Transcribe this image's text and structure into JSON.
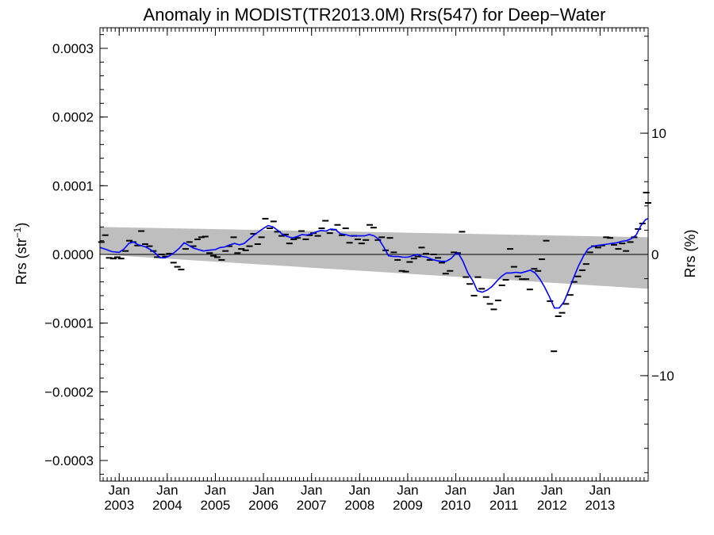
{
  "chart_data": {
    "type": "line",
    "title": "Anomaly in MODIST(TR2013.0M) Rrs(547) for Deep−Water",
    "ylabel_left_pre": "Rrs (str",
    "ylabel_left_sup": "−1",
    "ylabel_left_post": ")",
    "ylabel_right": "Rrs (%)",
    "xlim": [
      2002.6,
      2014.0
    ],
    "ylim": [
      -0.00033,
      0.00033
    ],
    "y2lim": [
      -18.7,
      18.7
    ],
    "grid": false,
    "x_ticks": [
      {
        "x": 2003.0,
        "top": "Jan",
        "bottom": "2003"
      },
      {
        "x": 2004.0,
        "top": "Jan",
        "bottom": "2004"
      },
      {
        "x": 2005.0,
        "top": "Jan",
        "bottom": "2005"
      },
      {
        "x": 2006.0,
        "top": "Jan",
        "bottom": "2006"
      },
      {
        "x": 2007.0,
        "top": "Jan",
        "bottom": "2007"
      },
      {
        "x": 2008.0,
        "top": "Jan",
        "bottom": "2008"
      },
      {
        "x": 2009.0,
        "top": "Jan",
        "bottom": "2009"
      },
      {
        "x": 2010.0,
        "top": "Jan",
        "bottom": "2010"
      },
      {
        "x": 2011.0,
        "top": "Jan",
        "bottom": "2011"
      },
      {
        "x": 2012.0,
        "top": "Jan",
        "bottom": "2012"
      },
      {
        "x": 2013.0,
        "top": "Jan",
        "bottom": "2013"
      }
    ],
    "y_ticks": [
      {
        "v": 0.0003,
        "label": "0.0003"
      },
      {
        "v": 0.0002,
        "label": "0.0002"
      },
      {
        "v": 0.0001,
        "label": "0.0001"
      },
      {
        "v": 0.0,
        "label": "0.0000"
      },
      {
        "v": -0.0001,
        "label": "−0.0001"
      },
      {
        "v": -0.0002,
        "label": "−0.0002"
      },
      {
        "v": -0.0003,
        "label": "−0.0003"
      }
    ],
    "y2_ticks": [
      {
        "v": 10,
        "label": "10"
      },
      {
        "v": 0,
        "label": "0"
      },
      {
        "v": -10,
        "label": "−10"
      }
    ],
    "band": {
      "x": [
        2002.6,
        2014.0
      ],
      "upper": [
        4e-05,
        2.5e-05
      ],
      "lower": [
        0.0,
        -5e-05
      ]
    },
    "zero_line": 0.0,
    "colors": {
      "smooth": "#0000ff",
      "band": "#bebebe",
      "points": "#000000",
      "axis": "#000000"
    },
    "monthly_points": [
      [
        2002.63,
        1.8e-05
      ],
      [
        2002.71,
        2.8e-05
      ],
      [
        2002.79,
        -5e-06
      ],
      [
        2002.88,
        -6e-06
      ],
      [
        2002.96,
        -4e-06
      ],
      [
        2003.04,
        -6e-06
      ],
      [
        2003.13,
        5e-06
      ],
      [
        2003.21,
        2e-05
      ],
      [
        2003.29,
        1.8e-05
      ],
      [
        2003.38,
        1.3e-05
      ],
      [
        2003.46,
        3.4e-05
      ],
      [
        2003.54,
        1.5e-05
      ],
      [
        2003.63,
        1.2e-05
      ],
      [
        2003.71,
        5e-06
      ],
      [
        2003.79,
        -4e-06
      ],
      [
        2003.88,
        0.0
      ],
      [
        2003.96,
        -3e-06
      ],
      [
        2004.04,
        1e-06
      ],
      [
        2004.13,
        -1.2e-05
      ],
      [
        2004.21,
        -1.8e-05
      ],
      [
        2004.29,
        -2.2e-05
      ],
      [
        2004.38,
        8e-06
      ],
      [
        2004.46,
        1.8e-05
      ],
      [
        2004.54,
        1.2e-05
      ],
      [
        2004.63,
        2.2e-05
      ],
      [
        2004.71,
        2.5e-05
      ],
      [
        2004.79,
        2.6e-05
      ],
      [
        2004.88,
        2e-06
      ],
      [
        2004.96,
        -2e-06
      ],
      [
        2005.04,
        -4e-06
      ],
      [
        2005.13,
        -8e-06
      ],
      [
        2005.21,
        5e-06
      ],
      [
        2005.29,
        1.2e-05
      ],
      [
        2005.38,
        2.5e-05
      ],
      [
        2005.46,
        2e-06
      ],
      [
        2005.54,
        8e-06
      ],
      [
        2005.63,
        6e-06
      ],
      [
        2005.71,
        1.2e-05
      ],
      [
        2005.79,
        3e-05
      ],
      [
        2005.88,
        1.5e-05
      ],
      [
        2005.96,
        2.5e-05
      ],
      [
        2006.04,
        5.2e-05
      ],
      [
        2006.13,
        3.8e-05
      ],
      [
        2006.21,
        4.8e-05
      ],
      [
        2006.29,
        3.3e-05
      ],
      [
        2006.38,
        2.7e-05
      ],
      [
        2006.46,
        2.9e-05
      ],
      [
        2006.54,
        1.6e-05
      ],
      [
        2006.63,
        2.2e-05
      ],
      [
        2006.71,
        2.4e-05
      ],
      [
        2006.79,
        3.4e-05
      ],
      [
        2006.88,
        2.2e-05
      ],
      [
        2006.96,
        2.8e-05
      ],
      [
        2007.04,
        3.1e-05
      ],
      [
        2007.13,
        2.7e-05
      ],
      [
        2007.21,
        3.8e-05
      ],
      [
        2007.29,
        4.9e-05
      ],
      [
        2007.38,
        3.1e-05
      ],
      [
        2007.46,
        3.6e-05
      ],
      [
        2007.54,
        4.3e-05
      ],
      [
        2007.63,
        2.8e-05
      ],
      [
        2007.71,
        3.8e-05
      ],
      [
        2007.79,
        1.7e-05
      ],
      [
        2007.88,
        2.7e-05
      ],
      [
        2007.96,
        2.2e-05
      ],
      [
        2008.04,
        1.6e-05
      ],
      [
        2008.13,
        2.1e-05
      ],
      [
        2008.21,
        4.3e-05
      ],
      [
        2008.29,
        3.9e-05
      ],
      [
        2008.38,
        2.1e-05
      ],
      [
        2008.46,
        2.5e-05
      ],
      [
        2008.54,
        6e-06
      ],
      [
        2008.63,
        2.4e-05
      ],
      [
        2008.71,
        3e-06
      ],
      [
        2008.79,
        -8e-06
      ],
      [
        2008.88,
        -2.4e-05
      ],
      [
        2008.96,
        -2.5e-05
      ],
      [
        2009.04,
        -1.1e-05
      ],
      [
        2009.13,
        -6e-06
      ],
      [
        2009.21,
        -3e-06
      ],
      [
        2009.29,
        1e-05
      ],
      [
        2009.38,
        1e-06
      ],
      [
        2009.46,
        -8e-06
      ],
      [
        2009.54,
        0.0
      ],
      [
        2009.63,
        -5e-06
      ],
      [
        2009.71,
        -1.2e-05
      ],
      [
        2009.79,
        -2.8e-05
      ],
      [
        2009.88,
        -2.4e-05
      ],
      [
        2009.96,
        3e-06
      ],
      [
        2010.04,
        2e-06
      ],
      [
        2010.13,
        3.3e-05
      ],
      [
        2010.21,
        -3.3e-05
      ],
      [
        2010.29,
        -4.3e-05
      ],
      [
        2010.38,
        -6e-05
      ],
      [
        2010.46,
        -3.3e-05
      ],
      [
        2010.54,
        -5e-05
      ],
      [
        2010.63,
        -6.2e-05
      ],
      [
        2010.71,
        -7.2e-05
      ],
      [
        2010.79,
        -8e-05
      ],
      [
        2010.88,
        -6.7e-05
      ],
      [
        2010.96,
        -4.5e-05
      ],
      [
        2011.04,
        -3.7e-05
      ],
      [
        2011.13,
        8e-06
      ],
      [
        2011.21,
        -1.8e-05
      ],
      [
        2011.29,
        -3.2e-05
      ],
      [
        2011.38,
        -3.6e-05
      ],
      [
        2011.46,
        -3.6e-05
      ],
      [
        2011.54,
        -5.1e-05
      ],
      [
        2011.63,
        -2.1e-05
      ],
      [
        2011.71,
        -2.4e-05
      ],
      [
        2011.79,
        -7e-06
      ],
      [
        2011.88,
        2e-05
      ],
      [
        2011.96,
        -6.8e-05
      ],
      [
        2012.04,
        -0.000141
      ],
      [
        2012.13,
        -9e-05
      ],
      [
        2012.21,
        -8.5e-05
      ],
      [
        2012.29,
        -7.2e-05
      ],
      [
        2012.38,
        -5.9e-05
      ],
      [
        2012.46,
        -4e-05
      ],
      [
        2012.54,
        -3.2e-05
      ],
      [
        2012.63,
        -2.3e-05
      ],
      [
        2012.71,
        -1.4e-05
      ],
      [
        2012.79,
        3e-06
      ],
      [
        2012.88,
        1.2e-05
      ],
      [
        2012.96,
        1e-05
      ],
      [
        2013.04,
        1.3e-05
      ],
      [
        2013.13,
        2.5e-05
      ],
      [
        2013.21,
        2.4e-05
      ],
      [
        2013.29,
        1.4e-05
      ],
      [
        2013.38,
        8e-06
      ],
      [
        2013.46,
        1.6e-05
      ],
      [
        2013.54,
        5e-06
      ],
      [
        2013.63,
        1.8e-05
      ],
      [
        2013.71,
        2.5e-05
      ],
      [
        2013.79,
        3.7e-05
      ],
      [
        2013.88,
        4.5e-05
      ],
      [
        2013.96,
        9e-05
      ],
      [
        2014.0,
        7.5e-05
      ]
    ],
    "smoothed_series": [
      [
        2002.6,
        1e-05
      ],
      [
        2002.7,
        8e-06
      ],
      [
        2002.85,
        4e-06
      ],
      [
        2003.0,
        3e-06
      ],
      [
        2003.1,
        8e-06
      ],
      [
        2003.2,
        1.6e-05
      ],
      [
        2003.3,
        1.8e-05
      ],
      [
        2003.4,
        1.4e-05
      ],
      [
        2003.55,
        1.1e-05
      ],
      [
        2003.65,
        7e-06
      ],
      [
        2003.75,
        2e-06
      ],
      [
        2003.85,
        -5e-06
      ],
      [
        2003.95,
        -5e-06
      ],
      [
        2004.05,
        -2e-06
      ],
      [
        2004.15,
        3e-06
      ],
      [
        2004.25,
        9e-06
      ],
      [
        2004.35,
        1.7e-05
      ],
      [
        2004.45,
        1.3e-05
      ],
      [
        2004.55,
        9e-06
      ],
      [
        2004.65,
        7e-06
      ],
      [
        2004.75,
        5e-06
      ],
      [
        2004.85,
        6e-06
      ],
      [
        2005.0,
        7e-06
      ],
      [
        2005.1,
        1e-05
      ],
      [
        2005.2,
        1.1e-05
      ],
      [
        2005.3,
        1.4e-05
      ],
      [
        2005.4,
        1.6e-05
      ],
      [
        2005.5,
        1.4e-05
      ],
      [
        2005.6,
        1.6e-05
      ],
      [
        2005.7,
        2.2e-05
      ],
      [
        2005.8,
        2.8e-05
      ],
      [
        2005.9,
        3.3e-05
      ],
      [
        2006.0,
        3.8e-05
      ],
      [
        2006.1,
        4.2e-05
      ],
      [
        2006.2,
        4e-05
      ],
      [
        2006.3,
        3.5e-05
      ],
      [
        2006.4,
        2.9e-05
      ],
      [
        2006.5,
        2.6e-05
      ],
      [
        2006.6,
        2.4e-05
      ],
      [
        2006.7,
        2.6e-05
      ],
      [
        2006.8,
        2.9e-05
      ],
      [
        2006.9,
        2.8e-05
      ],
      [
        2007.0,
        3e-05
      ],
      [
        2007.1,
        3.3e-05
      ],
      [
        2007.2,
        3.5e-05
      ],
      [
        2007.3,
        3.4e-05
      ],
      [
        2007.4,
        3.7e-05
      ],
      [
        2007.5,
        3.6e-05
      ],
      [
        2007.6,
        3e-05
      ],
      [
        2007.7,
        2.9e-05
      ],
      [
        2007.8,
        2.7e-05
      ],
      [
        2007.9,
        2.7e-05
      ],
      [
        2008.0,
        2.7e-05
      ],
      [
        2008.1,
        2.7e-05
      ],
      [
        2008.2,
        2.9e-05
      ],
      [
        2008.3,
        2.7e-05
      ],
      [
        2008.4,
        2.2e-05
      ],
      [
        2008.5,
        1.1e-05
      ],
      [
        2008.6,
        -2e-06
      ],
      [
        2008.7,
        -3e-06
      ],
      [
        2008.8,
        -3e-06
      ],
      [
        2008.9,
        -4e-06
      ],
      [
        2009.0,
        -4e-06
      ],
      [
        2009.1,
        -2e-06
      ],
      [
        2009.2,
        0.0
      ],
      [
        2009.3,
        -3e-06
      ],
      [
        2009.4,
        -4e-06
      ],
      [
        2009.5,
        -7e-06
      ],
      [
        2009.6,
        -9e-06
      ],
      [
        2009.7,
        -1e-05
      ],
      [
        2009.8,
        -1e-05
      ],
      [
        2009.9,
        -6e-06
      ],
      [
        2010.0,
        1e-06
      ],
      [
        2010.05,
        2e-06
      ],
      [
        2010.15,
        -1e-05
      ],
      [
        2010.25,
        -2.7e-05
      ],
      [
        2010.35,
        -3.8e-05
      ],
      [
        2010.45,
        -5.3e-05
      ],
      [
        2010.55,
        -5.5e-05
      ],
      [
        2010.65,
        -5.2e-05
      ],
      [
        2010.75,
        -4.7e-05
      ],
      [
        2010.85,
        -3.9e-05
      ],
      [
        2010.95,
        -3.2e-05
      ],
      [
        2011.05,
        -2.7e-05
      ],
      [
        2011.15,
        -2.7e-05
      ],
      [
        2011.25,
        -2.6e-05
      ],
      [
        2011.35,
        -2.7e-05
      ],
      [
        2011.45,
        -2.5e-05
      ],
      [
        2011.55,
        -2.3e-05
      ],
      [
        2011.65,
        -2.7e-05
      ],
      [
        2011.75,
        -3.6e-05
      ],
      [
        2011.85,
        -4.8e-05
      ],
      [
        2011.95,
        -6.2e-05
      ],
      [
        2012.05,
        -7.8e-05
      ],
      [
        2012.15,
        -7.8e-05
      ],
      [
        2012.25,
        -6.9e-05
      ],
      [
        2012.35,
        -5.2e-05
      ],
      [
        2012.45,
        -3.4e-05
      ],
      [
        2012.55,
        -1.7e-05
      ],
      [
        2012.65,
        -3e-06
      ],
      [
        2012.75,
        8e-06
      ],
      [
        2012.85,
        1.2e-05
      ],
      [
        2012.95,
        1.3e-05
      ],
      [
        2013.05,
        1.4e-05
      ],
      [
        2013.15,
        1.5e-05
      ],
      [
        2013.25,
        1.6e-05
      ],
      [
        2013.35,
        1.7e-05
      ],
      [
        2013.45,
        1.9e-05
      ],
      [
        2013.55,
        2e-05
      ],
      [
        2013.65,
        2.3e-05
      ],
      [
        2013.75,
        2.8e-05
      ],
      [
        2013.85,
        4.2e-05
      ],
      [
        2013.95,
        5.1e-05
      ],
      [
        2014.0,
        5.2e-05
      ]
    ]
  }
}
